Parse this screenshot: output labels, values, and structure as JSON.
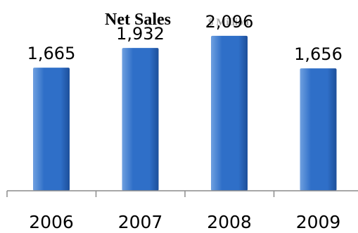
{
  "chart_data": {
    "type": "bar",
    "title": "Net Sales",
    "subtitle": "$ Million",
    "categories": [
      "2006",
      "2007",
      "2008",
      "2009"
    ],
    "values": [
      1665,
      1932,
      2096,
      1656
    ],
    "value_labels": [
      "1,665",
      "1,932",
      "2,096",
      "1,656"
    ],
    "xlabel": "",
    "ylabel": "",
    "ylim": [
      0,
      2200
    ],
    "grid": false,
    "legend": "none",
    "colors": {
      "bar_light": "#6fa0e0",
      "bar_mid": "#2f6fc8",
      "bar_dark": "#1d4f9a",
      "axis": "#8c8c8c"
    }
  }
}
